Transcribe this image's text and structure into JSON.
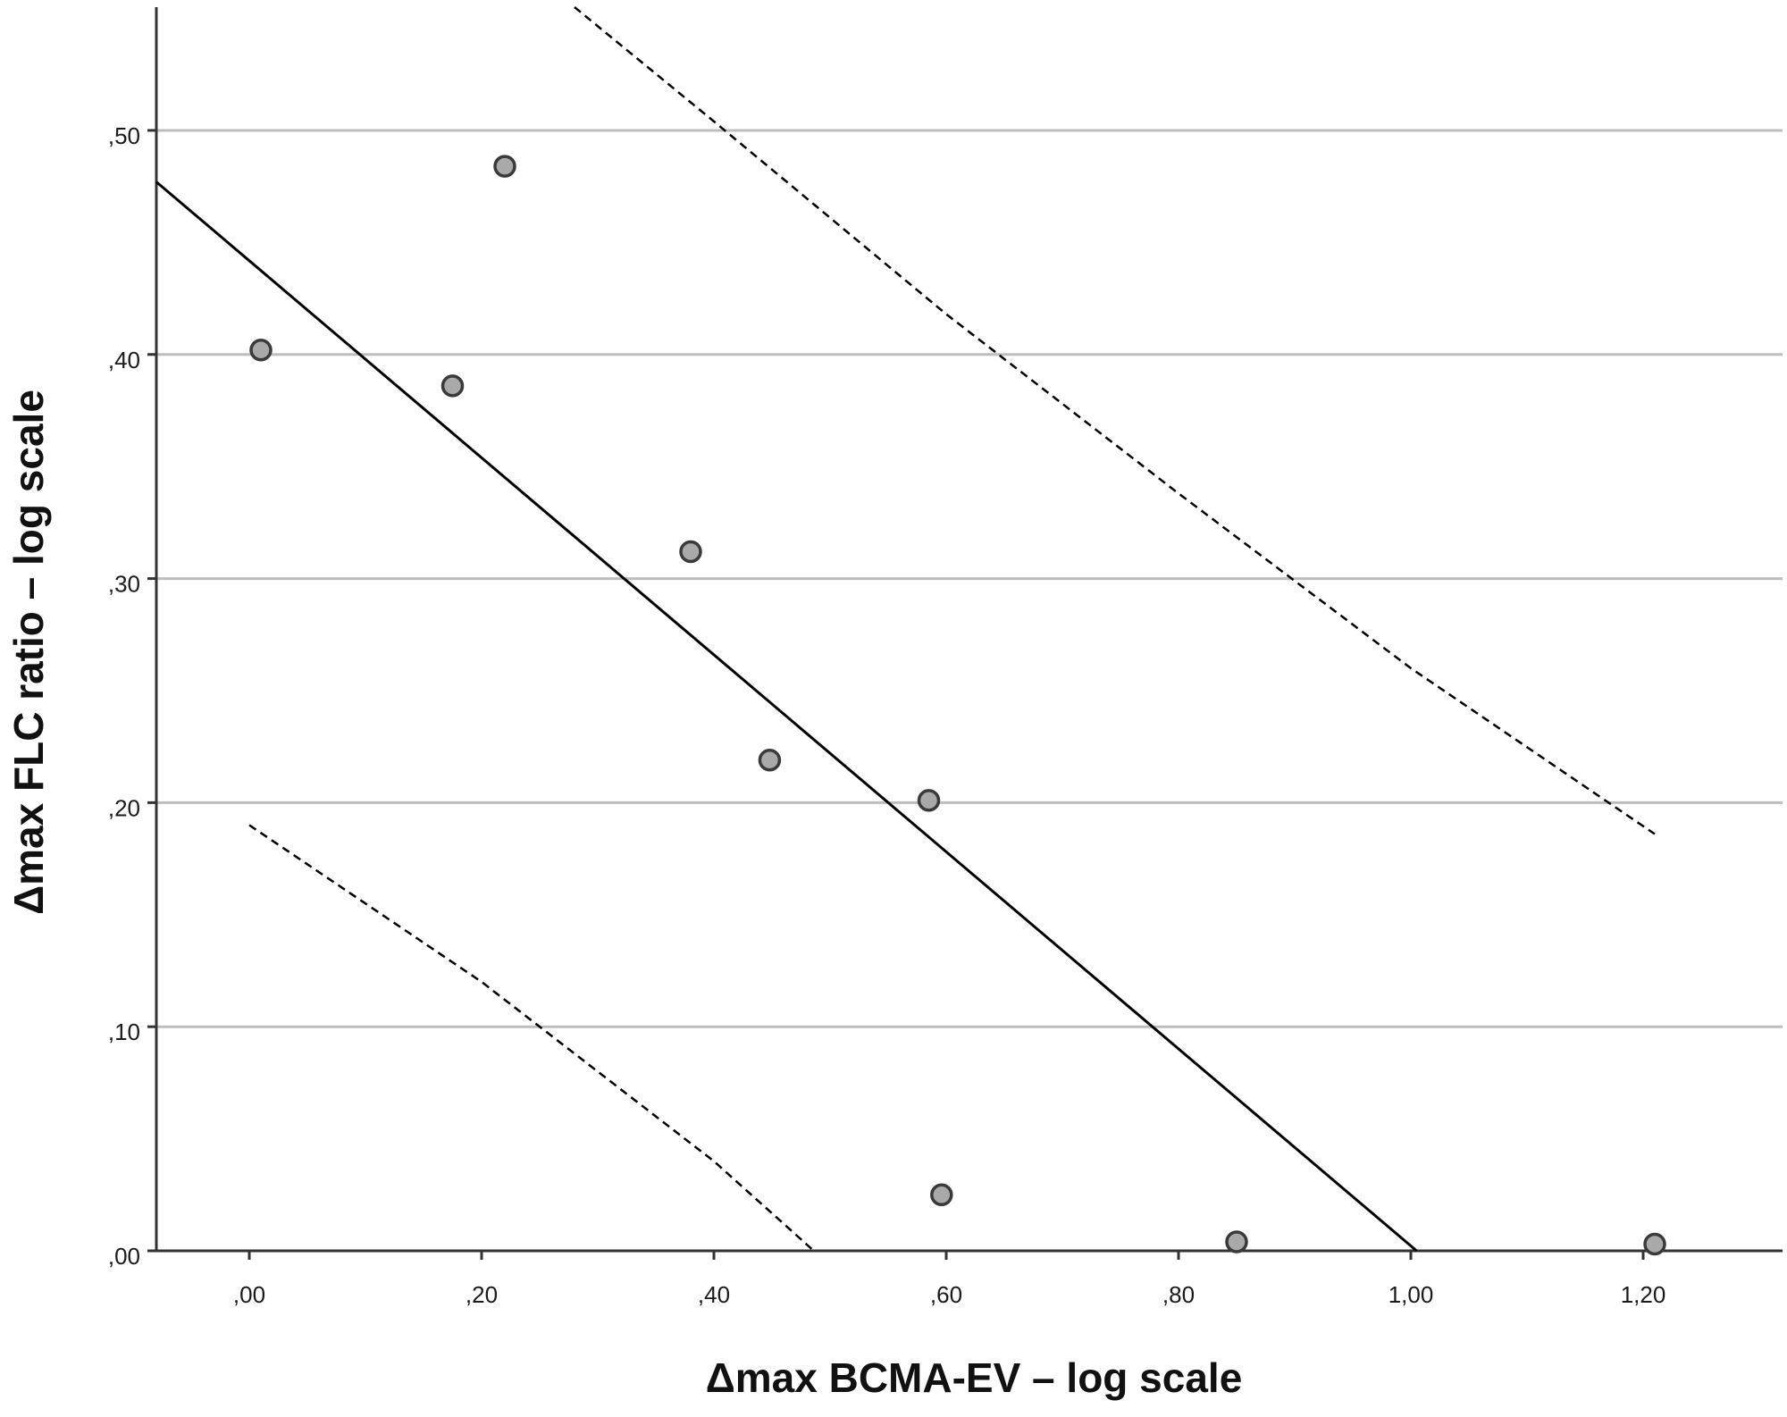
{
  "chart_data": {
    "type": "scatter",
    "title": "",
    "xlabel": "Δmax BCMA-EV – log scale",
    "ylabel": "Δmax FLC ratio – log scale",
    "xlim": [
      -0.08,
      1.32
    ],
    "ylim": [
      0.0,
      0.555
    ],
    "x_ticks": [
      0.0,
      0.2,
      0.4,
      0.6,
      0.8,
      1.0,
      1.2
    ],
    "x_tick_labels": [
      ",00",
      ",20",
      ",40",
      ",60",
      ",80",
      "1,00",
      "1,20"
    ],
    "y_ticks": [
      0.0,
      0.1,
      0.2,
      0.3,
      0.4,
      0.5
    ],
    "y_tick_labels": [
      ",00",
      ",10",
      ",20",
      ",30",
      ",40",
      ",50"
    ],
    "grid": "horizontal",
    "points": [
      {
        "x": 0.01,
        "y": 0.402
      },
      {
        "x": 0.175,
        "y": 0.386
      },
      {
        "x": 0.22,
        "y": 0.484
      },
      {
        "x": 0.38,
        "y": 0.312
      },
      {
        "x": 0.448,
        "y": 0.219
      },
      {
        "x": 0.585,
        "y": 0.201
      },
      {
        "x": 0.596,
        "y": 0.025
      },
      {
        "x": 0.85,
        "y": 0.004
      },
      {
        "x": 1.21,
        "y": 0.003
      }
    ],
    "fit_line": {
      "x": [
        -0.08,
        1.005
      ],
      "y": [
        0.477,
        0.0
      ]
    },
    "upper_bound": {
      "x": [
        0.28,
        0.4,
        0.6,
        0.8,
        1.0,
        1.21
      ],
      "y": [
        0.555,
        0.504,
        0.418,
        0.338,
        0.26,
        0.186
      ]
    },
    "lower_bound": {
      "x": [
        0.0,
        0.2,
        0.4,
        0.486
      ],
      "y": [
        0.19,
        0.12,
        0.04,
        0.0
      ]
    },
    "colors": {
      "point_fill": "#a9a9a9",
      "point_stroke": "#3a3a3a",
      "fit_line": "#000000",
      "bound_line": "#000000",
      "grid": "#bdbdbd",
      "axis": "#333333"
    }
  }
}
